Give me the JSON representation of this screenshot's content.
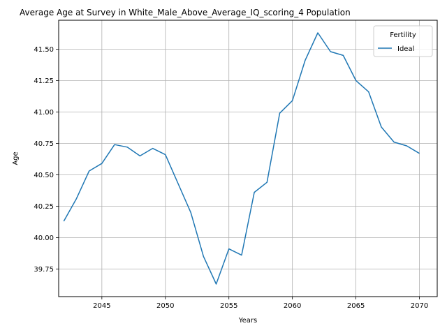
{
  "chart_data": {
    "type": "line",
    "title": "Average Age at Survey in White_Male_Above_Average_IQ_scoring_4 Population",
    "xlabel": "Years",
    "ylabel": "Age",
    "xlim": [
      2041.6,
      2071.4
    ],
    "ylim": [
      39.53,
      41.73
    ],
    "x_ticks": [
      2045,
      2050,
      2055,
      2060,
      2065,
      2070
    ],
    "y_ticks": [
      39.75,
      40.0,
      40.25,
      40.5,
      40.75,
      41.0,
      41.25,
      41.5
    ],
    "y_tick_labels": [
      "39.75",
      "40.00",
      "40.25",
      "40.50",
      "40.75",
      "41.00",
      "41.25",
      "41.50"
    ],
    "grid": true,
    "legend": {
      "title": "Fertility",
      "placement": "top-right"
    },
    "series": [
      {
        "name": "Ideal",
        "color": "#1f77b4",
        "x": [
          2042,
          2043,
          2044,
          2045,
          2046,
          2047,
          2048,
          2049,
          2050,
          2051,
          2052,
          2053,
          2054,
          2055,
          2056,
          2057,
          2058,
          2059,
          2060,
          2061,
          2062,
          2063,
          2064,
          2065,
          2066,
          2067,
          2068,
          2069,
          2070
        ],
        "values": [
          40.13,
          40.31,
          40.53,
          40.59,
          40.74,
          40.72,
          40.65,
          40.71,
          40.66,
          40.43,
          40.2,
          39.85,
          39.63,
          39.91,
          39.86,
          40.36,
          40.44,
          40.99,
          41.09,
          41.41,
          41.63,
          41.48,
          41.45,
          41.25,
          41.16,
          40.88,
          40.76,
          40.73,
          40.67
        ]
      }
    ]
  }
}
